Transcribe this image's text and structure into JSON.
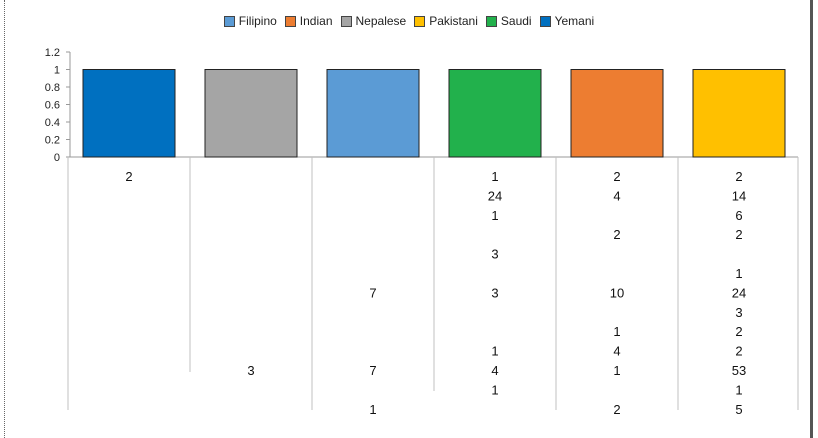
{
  "chart_data": {
    "type": "bar",
    "legend_position": "top",
    "grid": false,
    "legend": [
      {
        "name": "Filipino",
        "color": "#5B9BD5"
      },
      {
        "name": "Indian",
        "color": "#ED7D31"
      },
      {
        "name": "Nepalese",
        "color": "#A5A5A5"
      },
      {
        "name": "Pakistani",
        "color": "#FFC000"
      },
      {
        "name": "Saudi",
        "color": "#22B14C"
      },
      {
        "name": "Yemani",
        "color": "#0070C0"
      }
    ],
    "categories": [
      "Yemani",
      "Nepalese",
      "Filipino",
      "Saudi",
      "Indian",
      "Pakistani"
    ],
    "bars": [
      {
        "category": "Yemani",
        "value": 1,
        "color": "#0070C0"
      },
      {
        "category": "Nepalese",
        "value": 1,
        "color": "#A5A5A5"
      },
      {
        "category": "Filipino",
        "value": 1,
        "color": "#5B9BD5"
      },
      {
        "category": "Saudi",
        "value": 1,
        "color": "#22B14C"
      },
      {
        "category": "Indian",
        "value": 1,
        "color": "#ED7D31"
      },
      {
        "category": "Pakistani",
        "value": 1,
        "color": "#FFC000"
      }
    ],
    "ylim": [
      0,
      1.2
    ],
    "yticks": [
      "1.2",
      "1",
      "0.8",
      "0.6",
      "0.4",
      "0.2",
      "0"
    ],
    "table_rows": [
      [
        "2",
        "",
        "",
        "1",
        "2",
        "2"
      ],
      [
        "",
        "",
        "",
        "24",
        "4",
        "14"
      ],
      [
        "",
        "",
        "",
        "1",
        "",
        "6"
      ],
      [
        "",
        "",
        "",
        "",
        "2",
        "2"
      ],
      [
        "",
        "",
        "",
        "3",
        "",
        ""
      ],
      [
        "",
        "",
        "",
        "",
        "",
        "1"
      ],
      [
        "",
        "",
        "7",
        "3",
        "10",
        "24"
      ],
      [
        "",
        "",
        "",
        "",
        "",
        "3"
      ],
      [
        "",
        "",
        "",
        "",
        "1",
        "2"
      ],
      [
        "",
        "",
        "",
        "1",
        "4",
        "2"
      ],
      [
        "",
        "3",
        "7",
        "4",
        "1",
        "53"
      ],
      [
        "",
        "",
        "",
        "1",
        "",
        "1"
      ],
      [
        "",
        "",
        "1",
        "",
        "2",
        "5"
      ]
    ]
  }
}
